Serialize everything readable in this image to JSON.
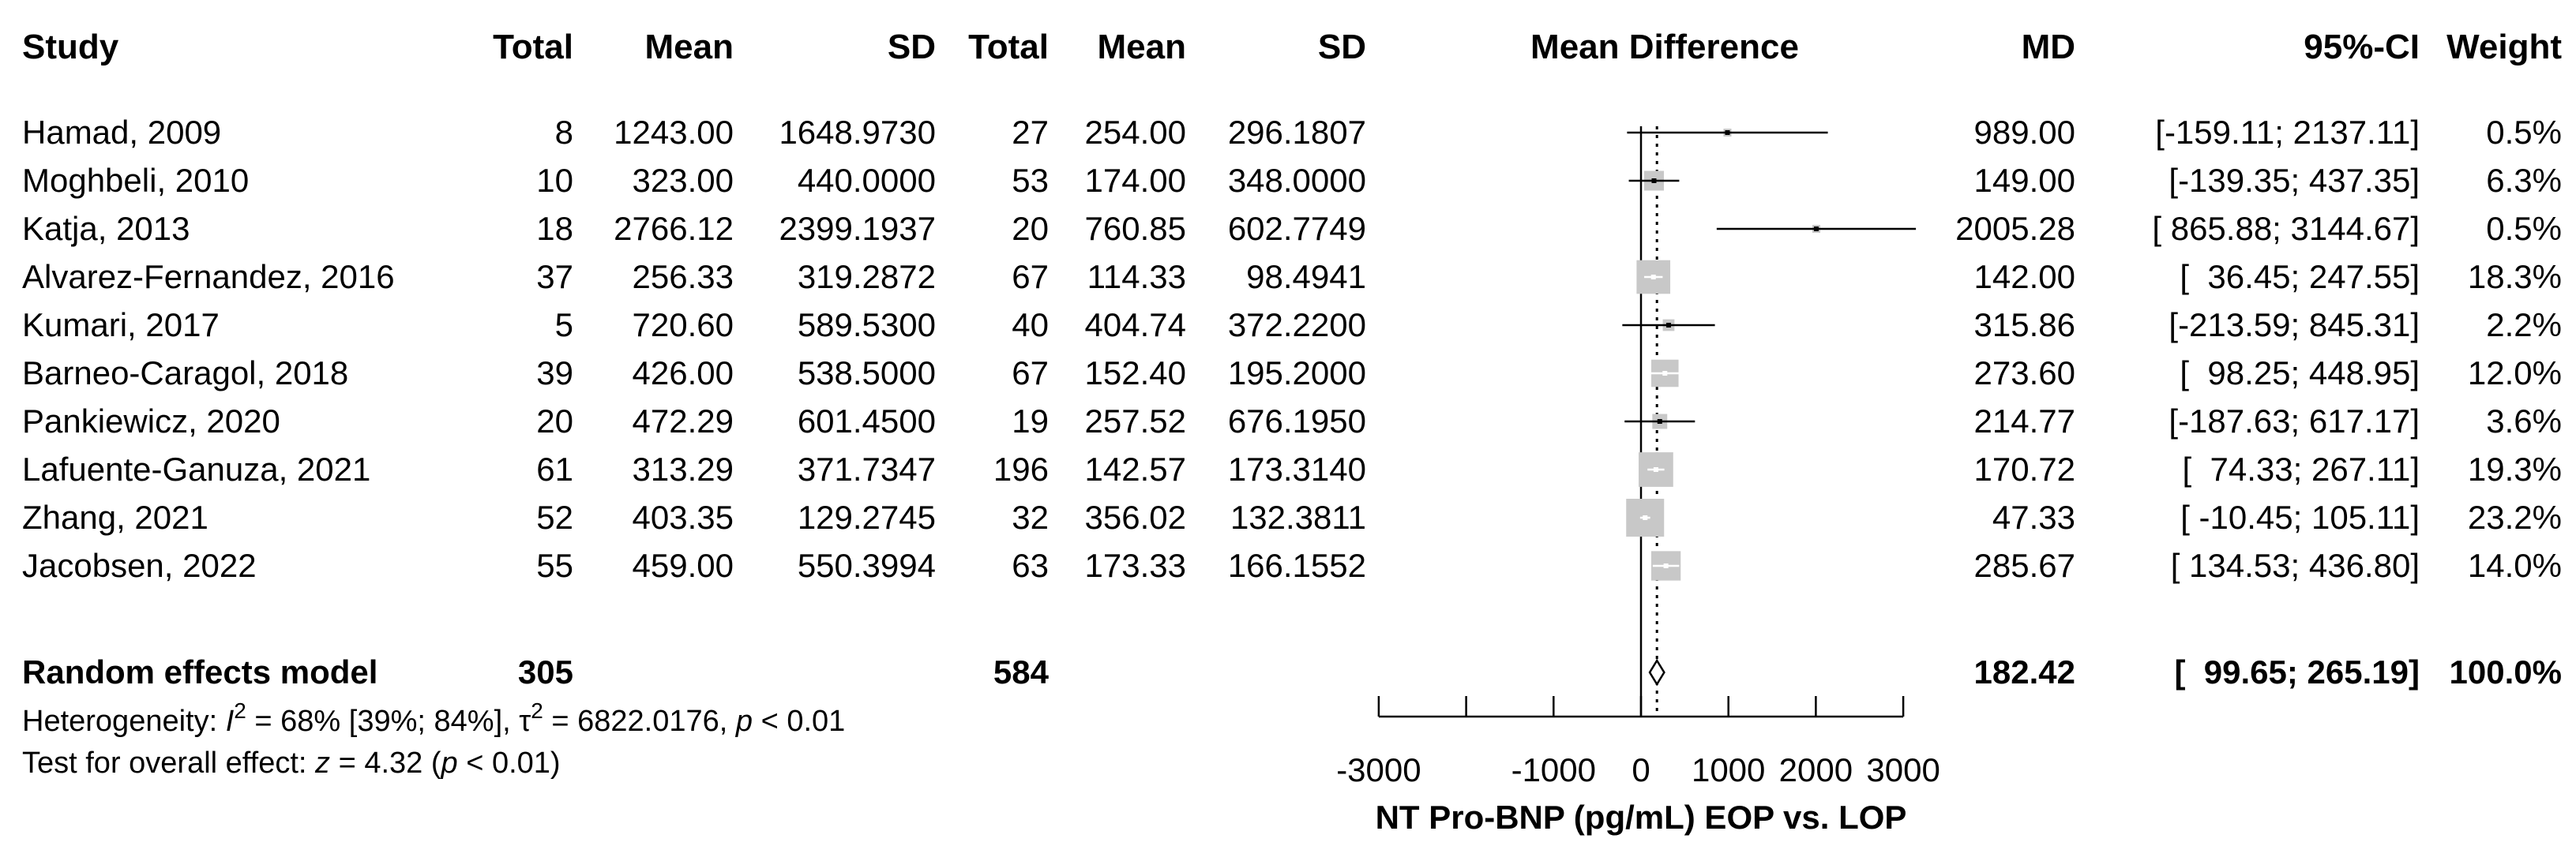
{
  "chart_data": {
    "type": "forest",
    "headers": {
      "study": "Study",
      "exp_total": "Total",
      "exp_mean": "Mean",
      "exp_sd": "SD",
      "ctl_total": "Total",
      "ctl_mean": "Mean",
      "ctl_sd": "SD",
      "plot": "Mean Difference",
      "md": "MD",
      "ci": "95%-CI",
      "weight": "Weight"
    },
    "studies": [
      {
        "name": "Hamad, 2009",
        "n1": "8",
        "m1": "1243.00",
        "sd1": "1648.9730",
        "n2": "27",
        "m2": "254.00",
        "sd2": "296.1807",
        "md_text": "989.00",
        "ci_text": "[-159.11; 2137.11]",
        "weight_text": "0.5%",
        "md": 989.0,
        "lo": -159.11,
        "hi": 2137.11,
        "w": 0.5
      },
      {
        "name": "Moghbeli, 2010",
        "n1": "10",
        "m1": "323.00",
        "sd1": "440.0000",
        "n2": "53",
        "m2": "174.00",
        "sd2": "348.0000",
        "md_text": "149.00",
        "ci_text": "[-139.35; 437.35]",
        "weight_text": "6.3%",
        "md": 149.0,
        "lo": -139.35,
        "hi": 437.35,
        "w": 6.3
      },
      {
        "name": "Katja, 2013",
        "n1": "18",
        "m1": "2766.12",
        "sd1": "2399.1937",
        "n2": "20",
        "m2": "760.85",
        "sd2": "602.7749",
        "md_text": "2005.28",
        "ci_text": "[ 865.88; 3144.67]",
        "weight_text": "0.5%",
        "md": 2005.28,
        "lo": 865.88,
        "hi": 3144.67,
        "w": 0.5
      },
      {
        "name": "Alvarez-Fernandez, 2016",
        "n1": "37",
        "m1": "256.33",
        "sd1": "319.2872",
        "n2": "67",
        "m2": "114.33",
        "sd2": "98.4941",
        "md_text": "142.00",
        "ci_text": "[  36.45; 247.55]",
        "weight_text": "18.3%",
        "md": 142.0,
        "lo": 36.45,
        "hi": 247.55,
        "w": 18.3
      },
      {
        "name": "Kumari, 2017",
        "n1": "5",
        "m1": "720.60",
        "sd1": "589.5300",
        "n2": "40",
        "m2": "404.74",
        "sd2": "372.2200",
        "md_text": "315.86",
        "ci_text": "[-213.59; 845.31]",
        "weight_text": "2.2%",
        "md": 315.86,
        "lo": -213.59,
        "hi": 845.31,
        "w": 2.2
      },
      {
        "name": "Barneo-Caragol, 2018",
        "n1": "39",
        "m1": "426.00",
        "sd1": "538.5000",
        "n2": "67",
        "m2": "152.40",
        "sd2": "195.2000",
        "md_text": "273.60",
        "ci_text": "[  98.25; 448.95]",
        "weight_text": "12.0%",
        "md": 273.6,
        "lo": 98.25,
        "hi": 448.95,
        "w": 12.0
      },
      {
        "name": "Pankiewicz, 2020",
        "n1": "20",
        "m1": "472.29",
        "sd1": "601.4500",
        "n2": "19",
        "m2": "257.52",
        "sd2": "676.1950",
        "md_text": "214.77",
        "ci_text": "[-187.63; 617.17]",
        "weight_text": "3.6%",
        "md": 214.77,
        "lo": -187.63,
        "hi": 617.17,
        "w": 3.6
      },
      {
        "name": "Lafuente-Ganuza, 2021",
        "n1": "61",
        "m1": "313.29",
        "sd1": "371.7347",
        "n2": "196",
        "m2": "142.57",
        "sd2": "173.3140",
        "md_text": "170.72",
        "ci_text": "[  74.33; 267.11]",
        "weight_text": "19.3%",
        "md": 170.72,
        "lo": 74.33,
        "hi": 267.11,
        "w": 19.3
      },
      {
        "name": "Zhang, 2021",
        "n1": "52",
        "m1": "403.35",
        "sd1": "129.2745",
        "n2": "32",
        "m2": "356.02",
        "sd2": "132.3811",
        "md_text": "47.33",
        "ci_text": "[ -10.45; 105.11]",
        "weight_text": "23.2%",
        "md": 47.33,
        "lo": -10.45,
        "hi": 105.11,
        "w": 23.2
      },
      {
        "name": "Jacobsen, 2022",
        "n1": "55",
        "m1": "459.00",
        "sd1": "550.3994",
        "n2": "63",
        "m2": "173.33",
        "sd2": "166.1552",
        "md_text": "285.67",
        "ci_text": "[ 134.53; 436.80]",
        "weight_text": "14.0%",
        "md": 285.67,
        "lo": 134.53,
        "hi": 436.8,
        "w": 14.0
      }
    ],
    "pooled": {
      "name": "Random effects model",
      "n1": "305",
      "n2": "584",
      "md_text": "182.42",
      "ci_text": "[  99.65; 265.19]",
      "weight_text": "100.0%",
      "md": 182.42,
      "lo": 99.65,
      "hi": 265.19
    },
    "heterogeneity": {
      "prefix": "Heterogeneity: ",
      "i_symbol": "I",
      "i_value": " = 68% [39%; 84%], ",
      "tau_symbol": "τ",
      "tau_value": " = 6822.0176, ",
      "p_symbol": "p",
      "p_value": " < 0.01"
    },
    "overall_effect": {
      "prefix": "Test for overall effect: ",
      "z_symbol": "z",
      "z_value": " = 4.32 (",
      "p_symbol": "p",
      "p_value": " < 0.01)"
    },
    "superscript": "2",
    "axis": {
      "xlim": [
        -3000,
        3000
      ],
      "major_ticks": [
        -3000,
        -2000,
        -1000,
        0,
        1000,
        2000,
        3000
      ],
      "tick_labels": [
        "-3000",
        "-1000",
        "0",
        "1000",
        "2000",
        "3000"
      ],
      "xlabel": "NT Pro-BNP (pg/mL) EOP vs. LOP",
      "reference_line": 0
    }
  }
}
